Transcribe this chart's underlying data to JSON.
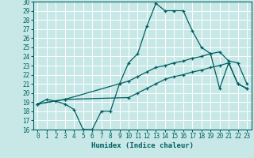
{
  "xlabel": "Humidex (Indice chaleur)",
  "ylabel": "",
  "xlim": [
    -0.5,
    23.5
  ],
  "ylim": [
    16,
    30
  ],
  "xticks": [
    0,
    1,
    2,
    3,
    4,
    5,
    6,
    7,
    8,
    9,
    10,
    11,
    12,
    13,
    14,
    15,
    16,
    17,
    18,
    19,
    20,
    21,
    22,
    23
  ],
  "yticks": [
    16,
    17,
    18,
    19,
    20,
    21,
    22,
    23,
    24,
    25,
    26,
    27,
    28,
    29,
    30
  ],
  "bg_color": "#c8e8e8",
  "grid_color": "#ffffff",
  "line_color": "#006060",
  "line1_x": [
    0,
    1,
    2,
    3,
    4,
    5,
    6,
    7,
    8,
    9,
    10,
    11,
    12,
    13,
    14,
    15,
    16,
    17,
    18,
    19,
    20,
    21,
    22,
    23
  ],
  "line1_y": [
    18.8,
    19.3,
    19.1,
    18.8,
    18.2,
    16.0,
    16.0,
    18.0,
    18.0,
    21.0,
    23.3,
    24.3,
    27.3,
    29.8,
    29.0,
    29.0,
    29.0,
    26.8,
    25.0,
    24.3,
    20.5,
    23.3,
    21.0,
    20.5
  ],
  "line2_x": [
    0,
    3,
    10,
    11,
    12,
    13,
    14,
    15,
    16,
    17,
    18,
    19,
    20,
    21,
    22,
    23
  ],
  "line2_y": [
    18.8,
    19.3,
    21.3,
    21.8,
    22.3,
    22.8,
    23.0,
    23.3,
    23.5,
    23.8,
    24.0,
    24.3,
    24.5,
    23.5,
    23.3,
    21.0
  ],
  "line3_x": [
    0,
    3,
    10,
    11,
    12,
    13,
    14,
    15,
    16,
    17,
    18,
    19,
    20,
    21,
    22,
    23
  ],
  "line3_y": [
    18.8,
    19.3,
    19.5,
    20.0,
    20.5,
    21.0,
    21.5,
    21.8,
    22.0,
    22.3,
    22.5,
    22.8,
    23.0,
    23.3,
    21.0,
    20.5
  ]
}
